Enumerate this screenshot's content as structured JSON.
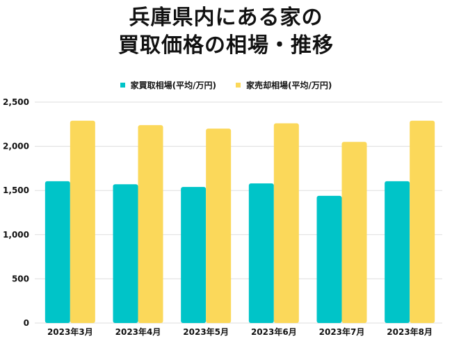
{
  "chart_data": {
    "type": "bar",
    "title_lines": [
      "兵庫県内にある家の",
      "買取価格の相場・推移"
    ],
    "categories": [
      "2023年3月",
      "2023年4月",
      "2023年5月",
      "2023年6月",
      "2023年7月",
      "2023年8月"
    ],
    "series": [
      {
        "name": "家買取相場(平均/万円)",
        "color": "#00c4c8",
        "values": [
          1605,
          1570,
          1540,
          1580,
          1440,
          1605
        ]
      },
      {
        "name": "家売却相場(平均/万円)",
        "color": "#fbd85a",
        "values": [
          2290,
          2240,
          2200,
          2260,
          2050,
          2290
        ]
      }
    ],
    "ylim": [
      0,
      2500
    ],
    "yticks": [
      0,
      500,
      1000,
      1500,
      2000,
      2500
    ],
    "ytick_labels": [
      "0",
      "500",
      "1,000",
      "1,500",
      "2,000",
      "2,500"
    ],
    "grid": true,
    "gridline_color": "#dddddd",
    "legend_position": "top-center",
    "xlabel": "",
    "ylabel": ""
  }
}
